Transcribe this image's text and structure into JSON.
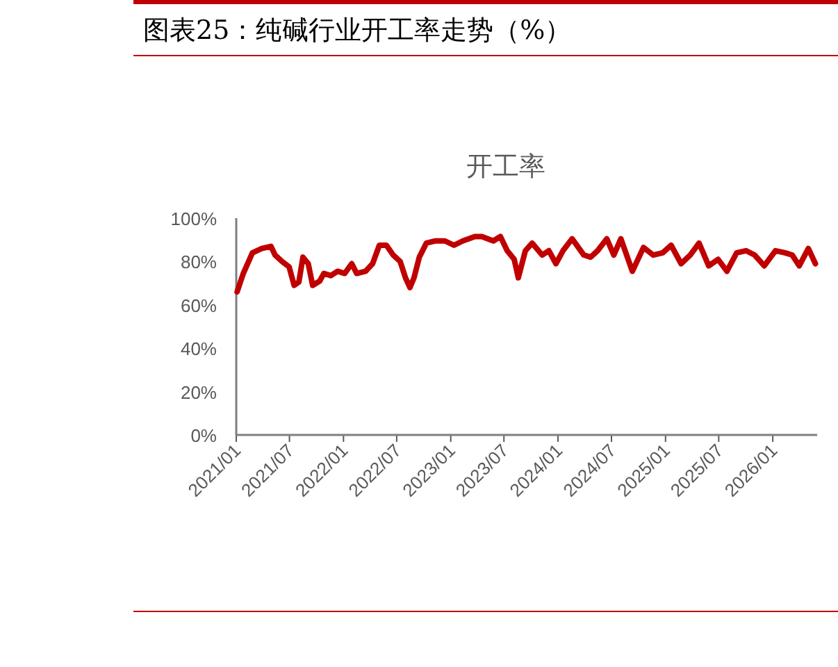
{
  "chart_data": {
    "type": "line",
    "title": "图表25：纯碱行业开工率走势（%）",
    "subtitle": "开工率",
    "x": [
      "2021-01-04",
      "2021-01-25",
      "2021-02-25",
      "2021-03-29",
      "2021-04-29",
      "2021-05-13",
      "2021-06-06",
      "2021-06-30",
      "2021-07-17",
      "2021-08-02",
      "2021-08-16",
      "2021-09-03",
      "2021-09-18",
      "2021-10-12",
      "2021-10-26",
      "2021-11-19",
      "2021-12-12",
      "2022-01-05",
      "2022-01-29",
      "2022-02-15",
      "2022-03-17",
      "2022-04-10",
      "2022-05-03",
      "2022-05-27",
      "2022-06-19",
      "2022-07-13",
      "2022-07-31",
      "2022-08-15",
      "2022-08-29",
      "2022-09-16",
      "2022-10-10",
      "2022-11-08",
      "2022-12-12",
      "2023-01-12",
      "2023-02-11",
      "2023-03-24",
      "2023-04-17",
      "2023-05-26",
      "2023-06-19",
      "2023-07-12",
      "2023-08-05",
      "2023-08-19",
      "2023-09-12",
      "2023-10-05",
      "2023-11-08",
      "2023-12-01",
      "2023-12-25",
      "2024-01-18",
      "2024-02-18",
      "2024-03-29",
      "2024-04-21",
      "2024-05-15",
      "2024-06-15",
      "2024-07-09",
      "2024-08-02",
      "2024-09-10",
      "2024-10-18",
      "2024-11-20",
      "2024-12-22",
      "2025-01-20",
      "2025-02-23",
      "2025-03-26",
      "2025-04-25",
      "2025-05-28",
      "2025-06-29",
      "2025-07-29",
      "2025-08-31",
      "2025-10-02",
      "2025-10-31",
      "2025-12-03",
      "2026-01-10",
      "2026-02-12",
      "2026-03-08",
      "2026-04-01",
      "2026-05-02",
      "2026-05-26"
    ],
    "series": [
      {
        "color": "#c00000",
        "values": [
          66,
          74.5,
          84,
          86,
          87,
          83,
          80,
          77.5,
          69,
          70.5,
          82,
          79,
          69,
          71,
          74.5,
          73.5,
          75.5,
          74.5,
          79,
          74.5,
          75.5,
          79,
          87.5,
          87.5,
          83,
          80,
          72.5,
          68,
          72.5,
          82,
          88.5,
          89.5,
          89.5,
          87.5,
          89.5,
          91.5,
          91.5,
          89.5,
          91.5,
          85,
          81,
          72.5,
          85,
          88.5,
          83,
          85,
          79,
          85,
          90.5,
          83,
          82,
          85,
          90.5,
          83,
          90.5,
          75.5,
          86.5,
          83,
          84,
          87.5,
          79,
          83,
          88.5,
          78,
          81,
          75.5,
          84,
          85,
          83,
          78,
          85,
          84,
          83,
          78,
          86,
          79
        ]
      }
    ],
    "xlim": [
      "2021-01-01",
      "2026-06-01"
    ],
    "xticks": [
      {
        "value": "2021-01-01",
        "label": "2021/01"
      },
      {
        "value": "2021-07-01",
        "label": "2021/07"
      },
      {
        "value": "2022-01-01",
        "label": "2022/01"
      },
      {
        "value": "2022-07-01",
        "label": "2022/07"
      },
      {
        "value": "2023-01-01",
        "label": "2023/01"
      },
      {
        "value": "2023-07-01",
        "label": "2023/07"
      },
      {
        "value": "2024-01-01",
        "label": "2024/01"
      },
      {
        "value": "2024-07-01",
        "label": "2024/07"
      },
      {
        "value": "2025-01-01",
        "label": "2025/01"
      },
      {
        "value": "2025-07-01",
        "label": "2025/07"
      },
      {
        "value": "2026-01-01",
        "label": "2026/01"
      }
    ],
    "ylim": [
      0,
      100
    ],
    "yticks": [
      {
        "value": 0,
        "label": "0%"
      },
      {
        "value": 20,
        "label": "20%"
      },
      {
        "value": 40,
        "label": "40%"
      },
      {
        "value": 60,
        "label": "60%"
      },
      {
        "value": 80,
        "label": "80%"
      },
      {
        "value": 100,
        "label": "100%"
      }
    ],
    "grid": false,
    "marker": "none",
    "line_style": "solid"
  }
}
